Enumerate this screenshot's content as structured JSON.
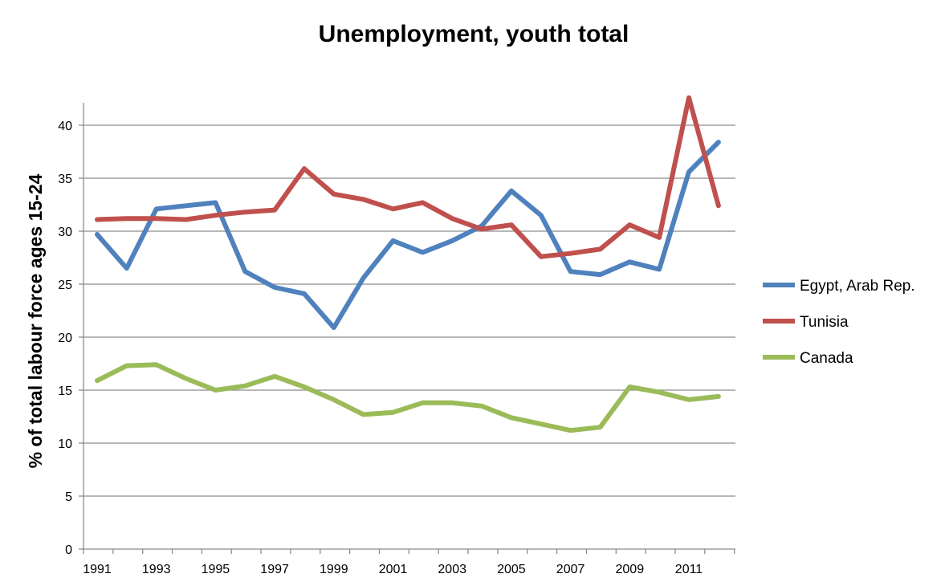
{
  "chart_data": {
    "type": "line",
    "title": "Unemployment, youth total",
    "xlabel": "",
    "ylabel": "% of total labour force ages 15-24",
    "xlim": [
      1991,
      2012
    ],
    "ylim": [
      0,
      40
    ],
    "grid": true,
    "legend_position": "right",
    "x": [
      1991,
      1992,
      1993,
      1994,
      1995,
      1996,
      1997,
      1998,
      1999,
      2000,
      2001,
      2002,
      2003,
      2004,
      2005,
      2006,
      2007,
      2008,
      2009,
      2010,
      2011,
      2012
    ],
    "x_tick_labels": [
      "1991",
      "1993",
      "1995",
      "1997",
      "1999",
      "2001",
      "2003",
      "2005",
      "2007",
      "2009",
      "2011"
    ],
    "y_tick_labels": [
      "0",
      "5",
      "10",
      "15",
      "20",
      "25",
      "30",
      "35",
      "40"
    ],
    "series": [
      {
        "name": "Egypt, Arab Rep.",
        "color": "#4f81bd",
        "values": [
          29.7,
          26.5,
          32.1,
          32.4,
          32.7,
          26.2,
          24.7,
          24.1,
          20.9,
          25.6,
          29.1,
          28.0,
          29.1,
          30.5,
          33.8,
          31.5,
          26.2,
          25.9,
          27.1,
          26.4,
          35.6,
          38.4
        ]
      },
      {
        "name": "Tunisia",
        "color": "#c0504d",
        "values": [
          31.1,
          31.2,
          31.2,
          31.1,
          31.5,
          31.8,
          32.0,
          35.9,
          33.5,
          33.0,
          32.1,
          32.7,
          31.2,
          30.2,
          30.6,
          27.6,
          27.9,
          28.3,
          30.6,
          29.4,
          42.6,
          32.4
        ]
      },
      {
        "name": "Canada",
        "color": "#9bbb59",
        "values": [
          15.9,
          17.3,
          17.4,
          16.1,
          15.0,
          15.4,
          16.3,
          15.3,
          14.1,
          12.7,
          12.9,
          13.8,
          13.8,
          13.5,
          12.4,
          11.8,
          11.2,
          11.5,
          15.3,
          14.8,
          14.1,
          14.4
        ]
      }
    ]
  }
}
